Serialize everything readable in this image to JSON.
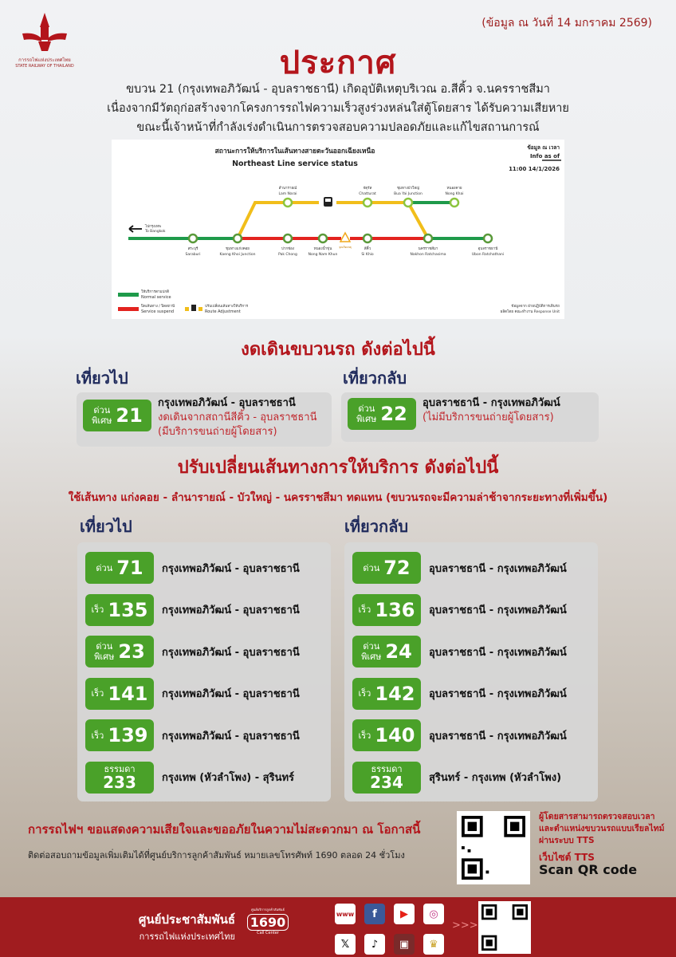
{
  "header": {
    "logo_text_th": "การรถไฟแห่งประเทศไทย",
    "logo_text_en": "STATE RAILWAY OF THAILAND",
    "date_note": "(ข้อมูล ณ วันที่ 14 มกราคม 2569)",
    "title": "ประกาศ",
    "intro": [
      "ขบวน 21 (กรุงเทพอภิวัฒน์ - อุบลราชธานี) เกิดอุบัติเหตุบริเวณ อ.สีคิ้ว จ.นครราชสีมา",
      "เนื่องจากมีวัตถุก่อสร้างจากโครงการรถไฟความเร็วสูงร่วงหล่นใส่ตู้โดยสาร ได้รับความเสียหาย",
      "ขณะนี้เจ้าหน้าที่กำลังเร่งดำเนินการตรวจสอบความปลอดภัยและแก้ไขสถานการณ์"
    ]
  },
  "map": {
    "title_th": "สถานะการให้บริการในเส้นทางสายตะวันออกเฉียงเหนือ",
    "title_en": "Northeast Line service status",
    "info_th": "ข้อมูล ณ เวลา",
    "info_en": "Info as of",
    "info_time": "11:00 14/1/2026",
    "to_bangkok_th": "ไปกรุงเทพ",
    "to_bangkok_en": "To Bangkok",
    "accident_label": "จุดเกิดเหตุ",
    "stations_main": [
      {
        "th": "สระบุรี",
        "en": "Saraburi",
        "status": "normal"
      },
      {
        "th": "ชุมทางแก่งคอย",
        "en": "Kaeng Khoi Junction",
        "status": "normal"
      },
      {
        "th": "ปากช่อง",
        "en": "Pak Chong",
        "status": "suspend"
      },
      {
        "th": "หนองน้ำขุ่น",
        "en": "Nong Nam Khun",
        "status": "suspend"
      },
      {
        "th": "สีคิ้ว",
        "en": "Si Khio",
        "status": "suspend"
      },
      {
        "th": "นครราชสีมา",
        "en": "Nakhon Ratchasima",
        "status": "normal"
      },
      {
        "th": "อุบลราชธานี",
        "en": "Ubon Ratchathani",
        "status": "normal"
      }
    ],
    "stations_top": [
      {
        "th": "ลำนารายณ์",
        "en": "Lam Narai"
      },
      {
        "th": "จัตุรัส",
        "en": "Chatturat"
      },
      {
        "th": "ชุมทางบัวใหญ่",
        "en": "Bua Yai Junction"
      },
      {
        "th": "หนองคาย",
        "en": "Nong Khai"
      }
    ],
    "legend": [
      {
        "th": "ให้บริการตามปกติ",
        "en": "Normal service",
        "color": "#1e9a4a"
      },
      {
        "th": "ปิดเส้นทาง / ปิดสถานี",
        "en": "Service suspend",
        "color": "#e3231f"
      },
      {
        "th": "ปรับเปลี่ยนเส้นทางให้บริการ",
        "en": "Route Adjustment",
        "color": "#f1be1a"
      }
    ],
    "source": [
      "ข้อมูลจาก ฝ่ายปฏิบัติการเดินรถ",
      "ผลิตโดย คณะทำงาน Response Unit"
    ]
  },
  "cancel": {
    "heading": "งดเดินขบวนรถ ดังต่อไปนี้",
    "outbound_label": "เที่ยวไป",
    "inbound_label": "เที่ยวกลับ",
    "outbound": {
      "type": "ด่วน พิเศษ",
      "type1": "ด่วน",
      "type2": "พิเศษ",
      "number": "21",
      "route": "กรุงเทพอภิวัฒน์ - อุบลราชธานี",
      "note1": "งดเดินจากสถานีสีคิ้ว - อุบลราชธานี",
      "note2": "(มีบริการขนถ่ายผู้โดยสาร)"
    },
    "inbound": {
      "type1": "ด่วน",
      "type2": "พิเศษ",
      "number": "22",
      "route": "อุบลราชธานี - กรุงเทพอภิวัฒน์",
      "note1": "(ไม่มีบริการขนถ่ายผู้โดยสาร)"
    }
  },
  "reroute": {
    "heading": "ปรับเปลี่ยนเส้นทางการให้บริการ ดังต่อไปนี้",
    "subheading": "ใช้เส้นทาง แก่งคอย - ลำนารายณ์ - บัวใหญ่ - นครราชสีมา ทดแทน (ขบวนรถจะมีความล่าช้าจากระยะทางที่เพิ่มขึ้น)",
    "outbound_label": "เที่ยวไป",
    "inbound_label": "เที่ยวกลับ",
    "outbound": [
      {
        "type1": "ด่วน",
        "type2": "",
        "number": "71",
        "route": "กรุงเทพอภิวัฒน์ - อุบลราชธานี"
      },
      {
        "type1": "เร็ว",
        "type2": "",
        "number": "135",
        "route": "กรุงเทพอภิวัฒน์ - อุบลราชธานี"
      },
      {
        "type1": "ด่วน",
        "type2": "พิเศษ",
        "number": "23",
        "route": "กรุงเทพอภิวัฒน์ - อุบลราชธานี"
      },
      {
        "type1": "เร็ว",
        "type2": "",
        "number": "141",
        "route": "กรุงเทพอภิวัฒน์ - อุบลราชธานี"
      },
      {
        "type1": "เร็ว",
        "type2": "",
        "number": "139",
        "route": "กรุงเทพอภิวัฒน์ - อุบลราชธานี"
      },
      {
        "type1": "ธรรมดา",
        "type2": "",
        "number": "233",
        "route": "กรุงเทพ (หัวลำโพง) - สุรินทร์",
        "stack": true
      }
    ],
    "inbound": [
      {
        "type1": "ด่วน",
        "type2": "",
        "number": "72",
        "route": "อุบลราชธานี - กรุงเทพอภิวัฒน์"
      },
      {
        "type1": "เร็ว",
        "type2": "",
        "number": "136",
        "route": "อุบลราชธานี - กรุงเทพอภิวัฒน์"
      },
      {
        "type1": "ด่วน",
        "type2": "พิเศษ",
        "number": "24",
        "route": "อุบลราชธานี - กรุงเทพอภิวัฒน์"
      },
      {
        "type1": "เร็ว",
        "type2": "",
        "number": "142",
        "route": "อุบลราชธานี - กรุงเทพอภิวัฒน์"
      },
      {
        "type1": "เร็ว",
        "type2": "",
        "number": "140",
        "route": "อุบลราชธานี - กรุงเทพอภิวัฒน์"
      },
      {
        "type1": "ธรรมดา",
        "type2": "",
        "number": "234",
        "route": "สุรินทร์ - กรุงเทพ (หัวลำโพง)",
        "stack": true
      }
    ]
  },
  "bottom": {
    "apology": "การรถไฟฯ ขอแสดงความเสียใจและขออภัยในความไม่สะดวกมา ณ โอกาสนี้",
    "contact": "ติดต่อสอบถามข้อมูลเพิ่มเติมได้ที่ศูนย์บริการลูกค้าสัมพันธ์  หมายเลขโทรศัพท์ 1690 ตลอด 24 ชั่วโมง",
    "tts_lines": [
      "ผู้โดยสารสามารถตรวจสอบเวลา",
      "และตำแหน่งขบวนรถแบบเรียลไทม์",
      "ผ่านระบบ TTS"
    ],
    "tts_site": "เว็บไซต์ TTS",
    "scan": "Scan QR code"
  },
  "footer": {
    "center_th": "ศูนย์ประชาสัมพันธ์",
    "center_sub": "การรถไฟแห่งประเทศไทย",
    "hotline_caption": "ศูนย์บริการลูกค้าสัมพันธ์",
    "hotline": "1690",
    "hotline_sub": "Call Center",
    "arrows": ">>>",
    "social_icons": [
      "www-icon",
      "facebook-icon",
      "youtube-icon",
      "instagram-icon",
      "x-icon",
      "tiktok-icon",
      "train-app-icon",
      "d-ticket-icon"
    ],
    "brand_red": "#a01c1f",
    "accent_green": "#4aa129"
  }
}
